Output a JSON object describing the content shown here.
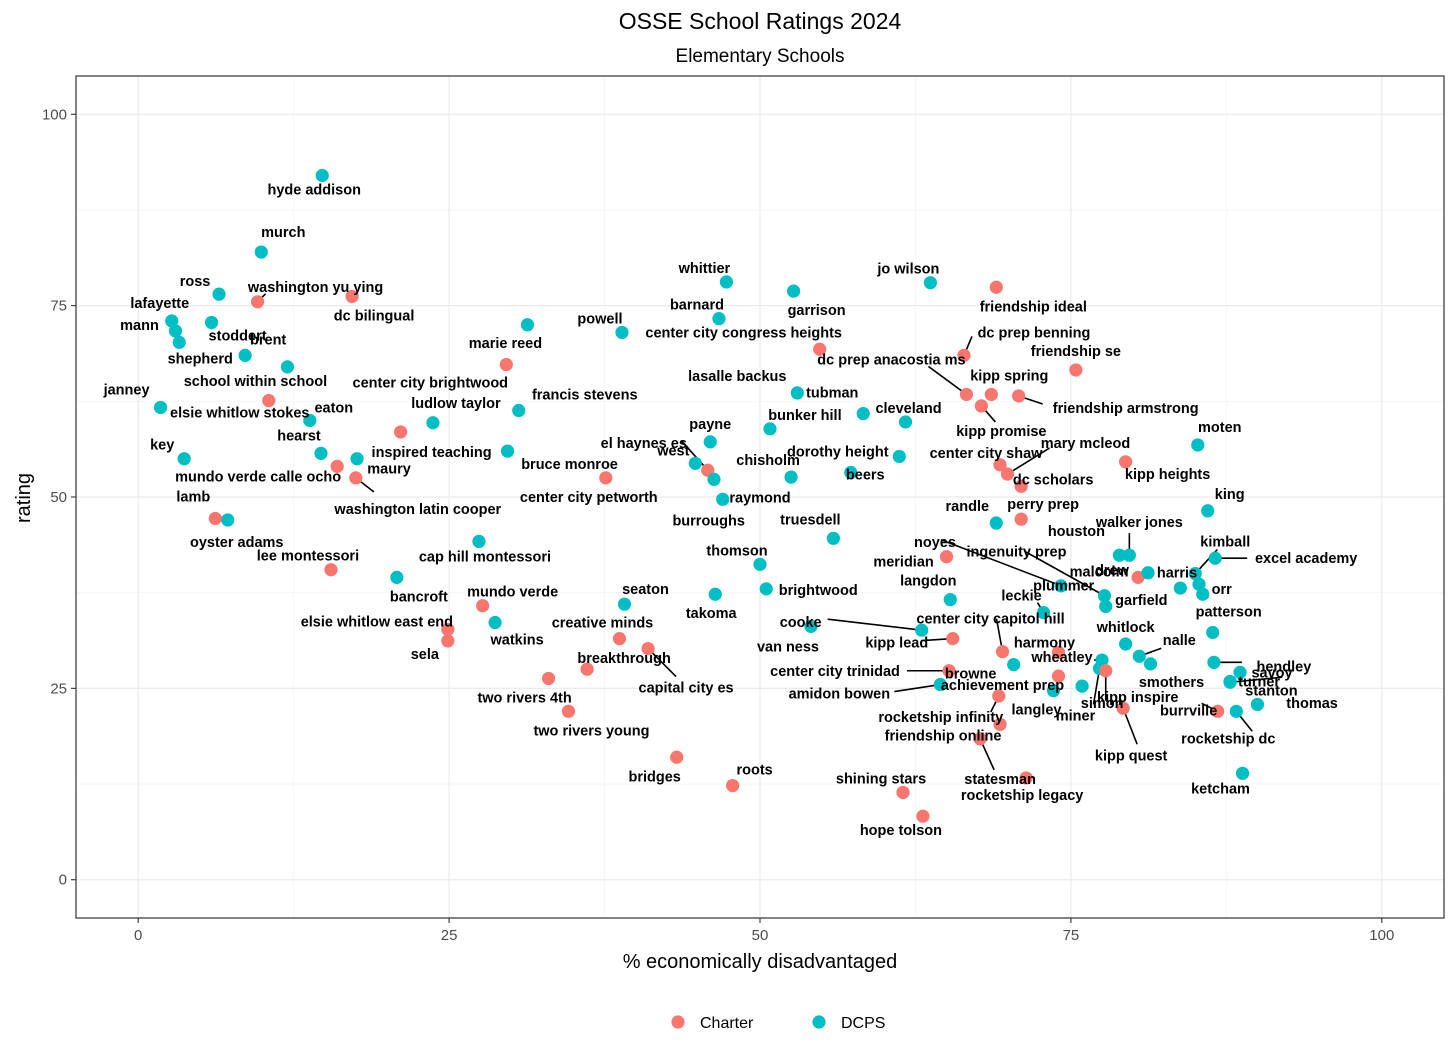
{
  "chart_data": {
    "type": "scatter",
    "title": "OSSE School Ratings 2024",
    "subtitle": "Elementary Schools",
    "xlabel": "% economically disadvantaged",
    "ylabel": "rating",
    "xlim": [
      -5,
      105
    ],
    "ylim": [
      -5,
      105
    ],
    "xticks": [
      "0",
      "25",
      "50",
      "75",
      "100"
    ],
    "yticks": [
      "0",
      "25",
      "50",
      "75",
      "100"
    ],
    "grid": true,
    "legend_position": "bottom",
    "series": [
      {
        "name": "Charter",
        "color": "#F8766D"
      },
      {
        "name": "DCPS",
        "color": "#00BFC4"
      }
    ],
    "points": [
      {
        "label": "hyde addison",
        "x": 14.8,
        "y": 92,
        "g": "DCPS"
      },
      {
        "label": "murch",
        "x": 9.9,
        "y": 82,
        "g": "DCPS"
      },
      {
        "label": "ross",
        "x": 6.5,
        "y": 76.5,
        "g": "DCPS"
      },
      {
        "label": "washington yu ying",
        "x": 9.6,
        "y": 75.5,
        "g": "Charter"
      },
      {
        "label": "dc bilingual",
        "x": 17.2,
        "y": 76.2,
        "g": "Charter"
      },
      {
        "label": "lafayette",
        "x": 2.7,
        "y": 73,
        "g": "DCPS"
      },
      {
        "label": "stoddert",
        "x": 5.9,
        "y": 72.8,
        "g": "DCPS"
      },
      {
        "label": "mann",
        "x": 3.0,
        "y": 71.7,
        "g": "DCPS"
      },
      {
        "label": "shepherd",
        "x": 3.3,
        "y": 70.2,
        "g": "DCPS"
      },
      {
        "label": "brent",
        "x": 8.6,
        "y": 68.5,
        "g": "DCPS"
      },
      {
        "label": "school within school",
        "x": 12.0,
        "y": 67,
        "g": "DCPS"
      },
      {
        "label": "janney",
        "x": 1.8,
        "y": 61.7,
        "g": "DCPS"
      },
      {
        "label": "elsie whitlow stokes",
        "x": 10.5,
        "y": 62.6,
        "g": "Charter"
      },
      {
        "label": "eaton",
        "x": 13.8,
        "y": 60,
        "g": "DCPS"
      },
      {
        "label": "key",
        "x": 3.7,
        "y": 55,
        "g": "DCPS"
      },
      {
        "label": "hearst",
        "x": 14.7,
        "y": 55.7,
        "g": "DCPS"
      },
      {
        "label": "mundo verde calle ocho",
        "x": 16.0,
        "y": 54,
        "g": "Charter"
      },
      {
        "label": "maury",
        "x": 17.6,
        "y": 55,
        "g": "DCPS"
      },
      {
        "label": "inspired teaching",
        "x": 21.1,
        "y": 58.5,
        "g": "Charter"
      },
      {
        "label": "ludlow taylor",
        "x": 23.7,
        "y": 59.7,
        "g": "DCPS"
      },
      {
        "label": "washington latin cooper",
        "x": 17.5,
        "y": 52.5,
        "g": "Charter"
      },
      {
        "label": "lamb",
        "x": 6.2,
        "y": 47.2,
        "g": "Charter"
      },
      {
        "label": "oyster adams",
        "x": 7.2,
        "y": 47,
        "g": "DCPS"
      },
      {
        "label": "lee montessori",
        "x": 15.5,
        "y": 40.5,
        "g": "Charter"
      },
      {
        "label": "cap hill montessori",
        "x": 27.4,
        "y": 44.2,
        "g": "DCPS"
      },
      {
        "label": "bancroft",
        "x": 20.8,
        "y": 39.5,
        "g": "DCPS"
      },
      {
        "label": "mundo verde",
        "x": 27.7,
        "y": 35.8,
        "g": "Charter"
      },
      {
        "label": "elsie whitlow east end",
        "x": 24.9,
        "y": 32.7,
        "g": "Charter"
      },
      {
        "label": "watkins",
        "x": 28.7,
        "y": 33.6,
        "g": "DCPS"
      },
      {
        "label": "sela",
        "x": 24.9,
        "y": 31.2,
        "g": "Charter"
      },
      {
        "label": "marie reed",
        "x": 31.3,
        "y": 72.5,
        "g": "DCPS"
      },
      {
        "label": "center city brightwood",
        "x": 29.6,
        "y": 67.3,
        "g": "Charter"
      },
      {
        "label": "francis stevens",
        "x": 30.6,
        "y": 61.3,
        "g": "DCPS"
      },
      {
        "label": "bruce monroe",
        "x": 29.7,
        "y": 56,
        "g": "DCPS"
      },
      {
        "label": "powell",
        "x": 38.9,
        "y": 71.5,
        "g": "DCPS"
      },
      {
        "label": "center city petworth",
        "x": 37.6,
        "y": 52.5,
        "g": "Charter"
      },
      {
        "label": "seaton",
        "x": 39.1,
        "y": 36,
        "g": "DCPS"
      },
      {
        "label": "creative minds",
        "x": 38.7,
        "y": 31.5,
        "g": "Charter"
      },
      {
        "label": "capital city es",
        "x": 41.0,
        "y": 30.2,
        "g": "Charter"
      },
      {
        "label": "breakthrough",
        "x": 36.1,
        "y": 27.5,
        "g": "Charter"
      },
      {
        "label": "two rivers 4th",
        "x": 33.0,
        "y": 26.3,
        "g": "Charter"
      },
      {
        "label": "two rivers young",
        "x": 34.6,
        "y": 22,
        "g": "Charter"
      },
      {
        "label": "bridges",
        "x": 43.3,
        "y": 16,
        "g": "Charter"
      },
      {
        "label": "roots",
        "x": 47.8,
        "y": 12.3,
        "g": "Charter"
      },
      {
        "label": "whittier",
        "x": 47.3,
        "y": 78.1,
        "g": "DCPS"
      },
      {
        "label": "barnard",
        "x": 46.7,
        "y": 73.3,
        "g": "DCPS"
      },
      {
        "label": "garrison",
        "x": 52.7,
        "y": 76.9,
        "g": "DCPS"
      },
      {
        "label": "center city congress heights",
        "x": 54.8,
        "y": 69.3,
        "g": "Charter"
      },
      {
        "label": "lasalle backus",
        "x": 53.0,
        "y": 63.6,
        "g": "DCPS"
      },
      {
        "label": "tubman",
        "x": 58.3,
        "y": 60.9,
        "g": "DCPS"
      },
      {
        "label": "bunker hill",
        "x": 50.8,
        "y": 58.9,
        "g": "DCPS"
      },
      {
        "label": "el haynes es",
        "x": 45.8,
        "y": 53.5,
        "g": "Charter"
      },
      {
        "label": "payne",
        "x": 46.0,
        "y": 57.2,
        "g": "DCPS"
      },
      {
        "label": "west",
        "x": 44.8,
        "y": 54.4,
        "g": "DCPS"
      },
      {
        "label": "raymond",
        "x": 46.3,
        "y": 52.3,
        "g": "DCPS"
      },
      {
        "label": "chisholm",
        "x": 52.5,
        "y": 52.6,
        "g": "DCPS"
      },
      {
        "label": "burroughs",
        "x": 47.0,
        "y": 49.7,
        "g": "DCPS"
      },
      {
        "label": "dorothy height",
        "x": 57.3,
        "y": 53.2,
        "g": "DCPS"
      },
      {
        "label": "beers",
        "x": 61.2,
        "y": 55.3,
        "g": "DCPS"
      },
      {
        "label": "cleveland",
        "x": 61.7,
        "y": 59.8,
        "g": "DCPS"
      },
      {
        "label": "jo wilson",
        "x": 63.7,
        "y": 78,
        "g": "DCPS"
      },
      {
        "label": "friendship ideal",
        "x": 69.0,
        "y": 77.4,
        "g": "Charter"
      },
      {
        "label": "dc prep benning",
        "x": 66.4,
        "y": 68.5,
        "g": "Charter"
      },
      {
        "label": "dc prep anacostia ms",
        "x": 66.6,
        "y": 63.4,
        "g": "Charter"
      },
      {
        "label": "kipp spring",
        "x": 68.6,
        "y": 63.4,
        "g": "Charter"
      },
      {
        "label": "kipp promise",
        "x": 67.8,
        "y": 61.9,
        "g": "Charter"
      },
      {
        "label": "friendship armstrong",
        "x": 70.8,
        "y": 63.2,
        "g": "Charter"
      },
      {
        "label": "friendship se",
        "x": 75.4,
        "y": 66.6,
        "g": "Charter"
      },
      {
        "label": "center city shaw",
        "x": 69.3,
        "y": 54.2,
        "g": "Charter"
      },
      {
        "label": "mary mcleod",
        "x": 69.9,
        "y": 53,
        "g": "Charter"
      },
      {
        "label": "dc scholars",
        "x": 71.0,
        "y": 51.4,
        "g": "Charter"
      },
      {
        "label": "kipp heights",
        "x": 79.4,
        "y": 54.6,
        "g": "Charter"
      },
      {
        "label": "moten",
        "x": 85.2,
        "y": 56.8,
        "g": "DCPS"
      },
      {
        "label": "truesdell",
        "x": 55.9,
        "y": 44.6,
        "g": "DCPS"
      },
      {
        "label": "randle",
        "x": 69.0,
        "y": 46.6,
        "g": "DCPS"
      },
      {
        "label": "perry prep",
        "x": 71.0,
        "y": 47.1,
        "g": "Charter"
      },
      {
        "label": "meridian",
        "x": 65.0,
        "y": 42.2,
        "g": "Charter"
      },
      {
        "label": "thomson",
        "x": 50.0,
        "y": 41.2,
        "g": "DCPS"
      },
      {
        "label": "brightwood",
        "x": 50.5,
        "y": 38,
        "g": "DCPS"
      },
      {
        "label": "takoma",
        "x": 46.4,
        "y": 37.3,
        "g": "DCPS"
      },
      {
        "label": "langdon",
        "x": 65.3,
        "y": 36.6,
        "g": "DCPS"
      },
      {
        "label": "noyes",
        "x": 74.2,
        "y": 38.4,
        "g": "DCPS"
      },
      {
        "label": "ingenuity prep",
        "x": 77.7,
        "y": 37.1,
        "g": "DCPS"
      },
      {
        "label": "plummer",
        "x": 77.8,
        "y": 35.7,
        "g": "DCPS"
      },
      {
        "label": "leckie",
        "x": 72.8,
        "y": 34.9,
        "g": "DCPS"
      },
      {
        "label": "houston",
        "x": 78.9,
        "y": 42.4,
        "g": "DCPS"
      },
      {
        "label": "walker jones",
        "x": 79.7,
        "y": 42.4,
        "g": "DCPS"
      },
      {
        "label": "malcolm",
        "x": 80.4,
        "y": 39.5,
        "g": "Charter"
      },
      {
        "label": "drew",
        "x": 81.2,
        "y": 40.1,
        "g": "DCPS"
      },
      {
        "label": "kimball",
        "x": 85.0,
        "y": 40,
        "g": "DCPS"
      },
      {
        "label": "excel academy",
        "x": 86.6,
        "y": 42,
        "g": "DCPS"
      },
      {
        "label": "king",
        "x": 86.0,
        "y": 48.2,
        "g": "DCPS"
      },
      {
        "label": "harris",
        "x": 85.3,
        "y": 38.6,
        "g": "DCPS"
      },
      {
        "label": "orr",
        "x": 85.6,
        "y": 37.3,
        "g": "DCPS"
      },
      {
        "label": "garfield",
        "x": 83.8,
        "y": 38.1,
        "g": "DCPS"
      },
      {
        "label": "cooke",
        "x": 63.0,
        "y": 32.6,
        "g": "DCPS"
      },
      {
        "label": "center city capitol hill",
        "x": 69.5,
        "y": 29.8,
        "g": "Charter"
      },
      {
        "label": "van ness",
        "x": 54.1,
        "y": 33.1,
        "g": "DCPS"
      },
      {
        "label": "kipp lead",
        "x": 65.5,
        "y": 31.5,
        "g": "Charter"
      },
      {
        "label": "harmony",
        "x": 74.0,
        "y": 29.7,
        "g": "Charter"
      },
      {
        "label": "browne",
        "x": 70.4,
        "y": 28.1,
        "g": "DCPS"
      },
      {
        "label": "center city trinidad",
        "x": 65.2,
        "y": 27.3,
        "g": "Charter"
      },
      {
        "label": "wheatley",
        "x": 77.5,
        "y": 28.7,
        "g": "DCPS"
      },
      {
        "label": "whitlock",
        "x": 79.4,
        "y": 30.8,
        "g": "DCPS"
      },
      {
        "label": "nalle",
        "x": 80.5,
        "y": 29.2,
        "g": "DCPS"
      },
      {
        "label": "smothers",
        "x": 81.4,
        "y": 28.2,
        "g": "DCPS"
      },
      {
        "label": "achievement prep",
        "x": 74.0,
        "y": 26.6,
        "g": "Charter"
      },
      {
        "label": "amidon bowen",
        "x": 64.5,
        "y": 25.5,
        "g": "DCPS"
      },
      {
        "label": "langley",
        "x": 73.6,
        "y": 24.7,
        "g": "DCPS"
      },
      {
        "label": "simon",
        "x": 75.9,
        "y": 25.3,
        "g": "DCPS"
      },
      {
        "label": "miner",
        "x": 77.3,
        "y": 27.6,
        "g": "DCPS"
      },
      {
        "label": "kipp inspire",
        "x": 77.8,
        "y": 27.3,
        "g": "Charter"
      },
      {
        "label": "rocketship infinity",
        "x": 69.2,
        "y": 24,
        "g": "Charter"
      },
      {
        "label": "friendship online",
        "x": 69.3,
        "y": 20.3,
        "g": "Charter"
      },
      {
        "label": "statesman",
        "x": 67.7,
        "y": 18.4,
        "g": "Charter"
      },
      {
        "label": "kipp quest",
        "x": 79.2,
        "y": 22.4,
        "g": "Charter"
      },
      {
        "label": "burrville",
        "x": 86.8,
        "y": 22,
        "g": "Charter"
      },
      {
        "label": "rocketship dc",
        "x": 88.3,
        "y": 22,
        "g": "DCPS"
      },
      {
        "label": "stanton",
        "x": 90.0,
        "y": 22.9,
        "g": "DCPS"
      },
      {
        "label": "thomas",
        "x": 87.8,
        "y": 25.8,
        "g": "DCPS"
      },
      {
        "label": "patterson",
        "x": 86.4,
        "y": 32.3,
        "g": "DCPS"
      },
      {
        "label": "hendley",
        "x": 86.5,
        "y": 28.4,
        "g": "DCPS"
      },
      {
        "label": "turner",
        "x": 87.8,
        "y": 25.9,
        "g": "DCPS"
      },
      {
        "label": "savoy",
        "x": 88.6,
        "y": 27.1,
        "g": "DCPS"
      },
      {
        "label": "ketcham",
        "x": 88.8,
        "y": 13.9,
        "g": "DCPS"
      },
      {
        "label": "rocketship legacy",
        "x": 71.4,
        "y": 13.3,
        "g": "Charter"
      },
      {
        "label": "shining stars",
        "x": 61.5,
        "y": 11.4,
        "g": "Charter"
      },
      {
        "label": "hope tolson",
        "x": 63.1,
        "y": 8.3,
        "g": "Charter"
      }
    ]
  }
}
